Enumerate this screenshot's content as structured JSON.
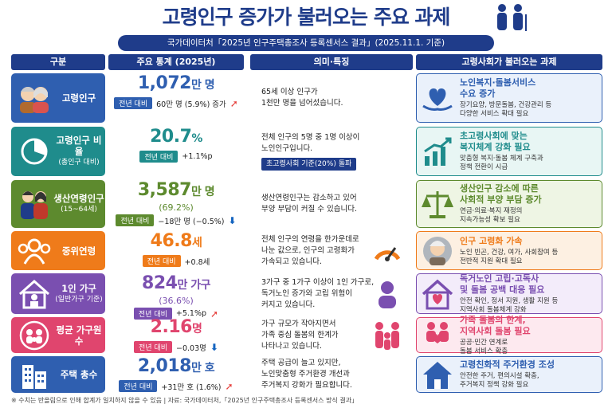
{
  "title": "고령인구 증가가 불러오는 주요 과제",
  "subtitle": "국가데이터처「2025년 인구주택총조사 등록센서스 결과」(2025.11.1. 기준)",
  "headers": [
    "구분",
    "주요 통계 (2025년)",
    "의미·특징",
    "고령사회가 불러오는 과제"
  ],
  "compare_label": "전년 대비",
  "rows": [
    {
      "category": "고령인구",
      "category_sub": "",
      "value": "1,072",
      "unit": "만 명",
      "pct": "",
      "change": "60만 명 (5.9%) 증가",
      "direction": "up",
      "meaning": "65세 이상 인구가\n1천만 명을 넘어섰습니다.",
      "meaning_tag": "",
      "issue_title": "노인복지·돌봄서비스\n수요 증가",
      "issue_desc": "장기요양, 방문돌봄, 건강관리 등\n다양한 서비스 확대 필요"
    },
    {
      "category": "고령인구 비율",
      "category_sub": "(총인구 대비)",
      "value": "20.7",
      "unit": "%",
      "pct": "",
      "change": "+1.1%p",
      "direction": "none",
      "meaning": "전체 인구의 5명 중 1명 이상이\n노인인구입니다.",
      "meaning_tag": "초고령사회 기준(20%) 돌파",
      "issue_title": "초고령사회에 맞는\n복지체계 강화 필요",
      "issue_desc": "맞춤형 복지·돌봄 체계 구축과\n정책 전환이 시급"
    },
    {
      "category": "생산연령인구",
      "category_sub": "(15~64세)",
      "value": "3,587",
      "unit": "만 명",
      "pct": "(69.2%)",
      "change": "−18만 명 (−0.5%)",
      "direction": "down",
      "meaning": "생산연령인구는 감소하고 있어\n부양 부담이 커질 수 있습니다.",
      "meaning_tag": "",
      "issue_title": "생산인구 감소에 따른\n사회적 부양 부담 증가",
      "issue_desc": "연금·의료·복지 재정의\n지속가능성 확보 필요"
    },
    {
      "category": "중위연령",
      "category_sub": "",
      "value": "46.8",
      "unit": "세",
      "pct": "",
      "change": "+0.8세",
      "direction": "none",
      "meaning": "전체 인구의 연령을 한가운데로\n나눈 값으로, 인구의 고령화가\n가속되고 있습니다.",
      "meaning_tag": "",
      "issue_title": "인구 고령화 가속",
      "issue_desc": "노인 빈곤, 건강, 여가, 사회참여 등\n전반적 지원 확대 필요"
    },
    {
      "category": "1인 가구",
      "category_sub": "(일반가구 기준)",
      "value": "824",
      "unit": "만 가구",
      "pct": "(36.6%)",
      "change": "+5.1%p",
      "direction": "up",
      "meaning": "3가구 중 1가구 이상이 1인 가구로,\n독거노인 증가와 고립 위험이\n커지고 있습니다.",
      "meaning_tag": "",
      "issue_title": "독거노인 고립·고독사\n및 돌봄 공백 대응 필요",
      "issue_desc": "안전 확인, 정서 지원, 생활 지원 등\n지역사회 돌봄체계 강화"
    },
    {
      "category": "평균 가구원 수",
      "category_sub": "",
      "value": "2.16",
      "unit": "명",
      "pct": "",
      "change": "−0.03명",
      "direction": "down",
      "meaning": "가구 규모가 작아지면서\n가족 중심 돌봄의 한계가\n나타나고 있습니다.",
      "meaning_tag": "",
      "issue_title": "가족 돌봄의 한계,\n지역사회 돌봄 필요",
      "issue_desc": "공공·민간 연계로\n돌봄 서비스 확충"
    },
    {
      "category": "주택 총수",
      "category_sub": "",
      "value": "2,018",
      "unit": "만 호",
      "pct": "",
      "change": "+31만 호 (1.6%)",
      "direction": "up",
      "meaning": "주택 공급이 늘고 있지만,\n노인맞춤형 주거환경 개선과\n주거복지 강화가 필요합니다.",
      "meaning_tag": "",
      "issue_title": "고령친화적 주거환경 조성",
      "issue_desc": "안전한 주거, 편의시설 확충,\n주거복지 정책 강화 필요"
    }
  ],
  "footer": "※ 수치는 반올림으로 인해 합계가 일치하지 않을 수 있음    |    자료: 국가데이터처,「2025년 인구주택총조사 등록센서스 방식 결과」",
  "colors": {
    "navy": "#1f3c8a",
    "rows": [
      "#2f5fb0",
      "#1f8c8c",
      "#5d8a2e",
      "#ef7b1a",
      "#7a4fb0",
      "#e0456e",
      "#2f5fb0"
    ],
    "issue_bg": [
      "#eaf1fb",
      "#e8f6f4",
      "#eef5e4",
      "#fdf0e2",
      "#f3ecfa",
      "#fde9ef",
      "#eaf1fb"
    ]
  }
}
